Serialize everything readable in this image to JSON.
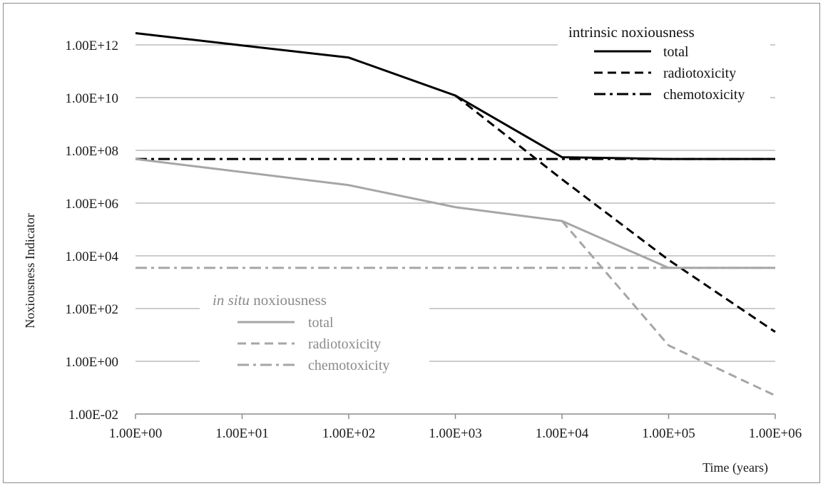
{
  "chart_data": {
    "type": "line",
    "x_scale": "log",
    "y_scale": "log",
    "xlabel": "Time (years)",
    "ylabel": "Noxiousness Indicator",
    "x_tick_labels": [
      "1.00E+00",
      "1.00E+01",
      "1.00E+02",
      "1.00E+03",
      "1.00E+04",
      "1.00E+05",
      "1.00E+06"
    ],
    "y_tick_labels": [
      "1.00E-02",
      "1.00E+00",
      "1.00E+02",
      "1.00E+04",
      "1.00E+06",
      "1.00E+08",
      "1.00E+10",
      "1.00E+12"
    ],
    "xlim": [
      1,
      1000000
    ],
    "ylim": [
      0.01,
      10000000000000
    ],
    "grid": "horizontal",
    "legends": [
      {
        "group": "intrinsic",
        "title": "intrinsic noxiousness",
        "title_italic_part": "",
        "title_rest": "intrinsic noxiousness",
        "placement": "top-right",
        "color": "#000000",
        "items": [
          {
            "label": "total",
            "dash": "solid"
          },
          {
            "label": "radiotoxicity",
            "dash": "dashed"
          },
          {
            "label": "chemotoxicity",
            "dash": "dash-dot"
          }
        ]
      },
      {
        "group": "in_situ",
        "title": "in situ noxiousness",
        "title_italic_part": "in situ",
        "title_rest": " noxiousness",
        "placement": "bottom-left",
        "color": "#a6a6a6",
        "items": [
          {
            "label": "total",
            "dash": "solid"
          },
          {
            "label": "radiotoxicity",
            "dash": "dashed"
          },
          {
            "label": "chemotoxicity",
            "dash": "dash-dot"
          }
        ]
      }
    ],
    "series": [
      {
        "name": "intrinsic noxiousness total",
        "group": "intrinsic",
        "dash": "solid",
        "color": "#000000",
        "x": [
          1,
          10,
          100,
          1000,
          10000,
          100000,
          1000000
        ],
        "y": [
          2800000000000,
          950000000000,
          330000000000,
          12000000000,
          55000000,
          47000000,
          47000000
        ]
      },
      {
        "name": "intrinsic noxiousness radiotoxicity",
        "group": "intrinsic",
        "dash": "dashed",
        "color": "#000000",
        "x": [
          1000,
          10000,
          100000,
          1000000
        ],
        "y": [
          12000000000,
          8000000,
          7000,
          13
        ]
      },
      {
        "name": "intrinsic noxiousness chemotoxicity",
        "group": "intrinsic",
        "dash": "dash-dot",
        "color": "#000000",
        "x": [
          1,
          1000000
        ],
        "y": [
          47000000,
          47000000
        ]
      },
      {
        "name": "in situ noxiousness total",
        "group": "in_situ",
        "dash": "solid",
        "color": "#a6a6a6",
        "x": [
          1,
          100,
          1000,
          10000,
          100000,
          1000000
        ],
        "y": [
          47000000,
          4800000,
          700000,
          210000,
          3500,
          3500
        ]
      },
      {
        "name": "in situ noxiousness radiotoxicity",
        "group": "in_situ",
        "dash": "dashed",
        "color": "#a6a6a6",
        "x": [
          10000,
          100000,
          1000000
        ],
        "y": [
          210000,
          4,
          0.05
        ]
      },
      {
        "name": "in situ noxiousness chemotoxicity",
        "group": "in_situ",
        "dash": "dash-dot",
        "color": "#a6a6a6",
        "x": [
          1,
          1000000
        ],
        "y": [
          3500,
          3500
        ]
      }
    ]
  }
}
